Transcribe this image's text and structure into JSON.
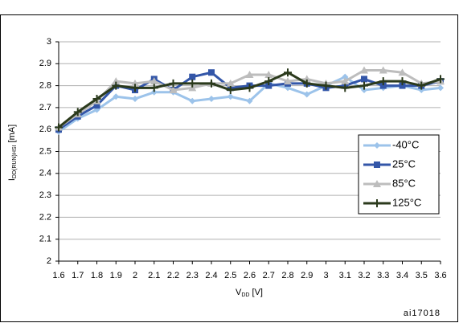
{
  "chart_data": {
    "type": "line",
    "y_label": {
      "main": "I",
      "sub": "DD(RUN)HSI",
      "unit": " [mA]"
    },
    "x_label": {
      "main": "V",
      "sub": "DD",
      "unit": " [V]"
    },
    "annotation": "ai17018",
    "x": [
      1.6,
      1.7,
      1.8,
      1.9,
      2,
      2.1,
      2.2,
      2.3,
      2.4,
      2.5,
      2.6,
      2.7,
      2.8,
      2.9,
      3,
      3.1,
      3.2,
      3.3,
      3.4,
      3.5,
      3.6
    ],
    "xlim": [
      1.6,
      3.6
    ],
    "xticks": [
      1.6,
      1.7,
      1.8,
      1.9,
      2,
      2.1,
      2.2,
      2.3,
      2.4,
      2.5,
      2.6,
      2.7,
      2.8,
      2.9,
      3,
      3.1,
      3.2,
      3.3,
      3.4,
      3.5,
      3.6
    ],
    "ylim": [
      2,
      3
    ],
    "yticks": [
      2,
      2.1,
      2.2,
      2.3,
      2.4,
      2.5,
      2.6,
      2.7,
      2.8,
      2.9,
      3
    ],
    "grid": true,
    "legend": "right",
    "series": [
      {
        "name": "-40°C",
        "color": "#9cc3ea",
        "marker": "diamond",
        "values": [
          2.59,
          2.65,
          2.69,
          2.75,
          2.74,
          2.77,
          2.77,
          2.73,
          2.74,
          2.75,
          2.73,
          2.81,
          2.79,
          2.76,
          2.8,
          2.84,
          2.78,
          2.79,
          2.8,
          2.78,
          2.79
        ]
      },
      {
        "name": "25°C",
        "color": "#3356a8",
        "marker": "square",
        "values": [
          2.6,
          2.66,
          2.71,
          2.8,
          2.78,
          2.83,
          2.78,
          2.84,
          2.86,
          2.79,
          2.8,
          2.8,
          2.81,
          2.81,
          2.79,
          2.8,
          2.83,
          2.8,
          2.8,
          2.8,
          2.82
        ]
      },
      {
        "name": "85°C",
        "color": "#bdbdbd",
        "marker": "triangle",
        "values": [
          2.61,
          2.67,
          2.73,
          2.82,
          2.81,
          2.82,
          2.78,
          2.79,
          2.81,
          2.81,
          2.85,
          2.85,
          2.82,
          2.83,
          2.81,
          2.82,
          2.87,
          2.87,
          2.86,
          2.81,
          2.82
        ]
      },
      {
        "name": "125°C",
        "color": "#2b3a1c",
        "marker": "plus",
        "values": [
          2.61,
          2.68,
          2.74,
          2.8,
          2.79,
          2.79,
          2.81,
          2.81,
          2.81,
          2.78,
          2.79,
          2.82,
          2.86,
          2.81,
          2.8,
          2.79,
          2.8,
          2.82,
          2.82,
          2.8,
          2.83
        ]
      }
    ]
  }
}
